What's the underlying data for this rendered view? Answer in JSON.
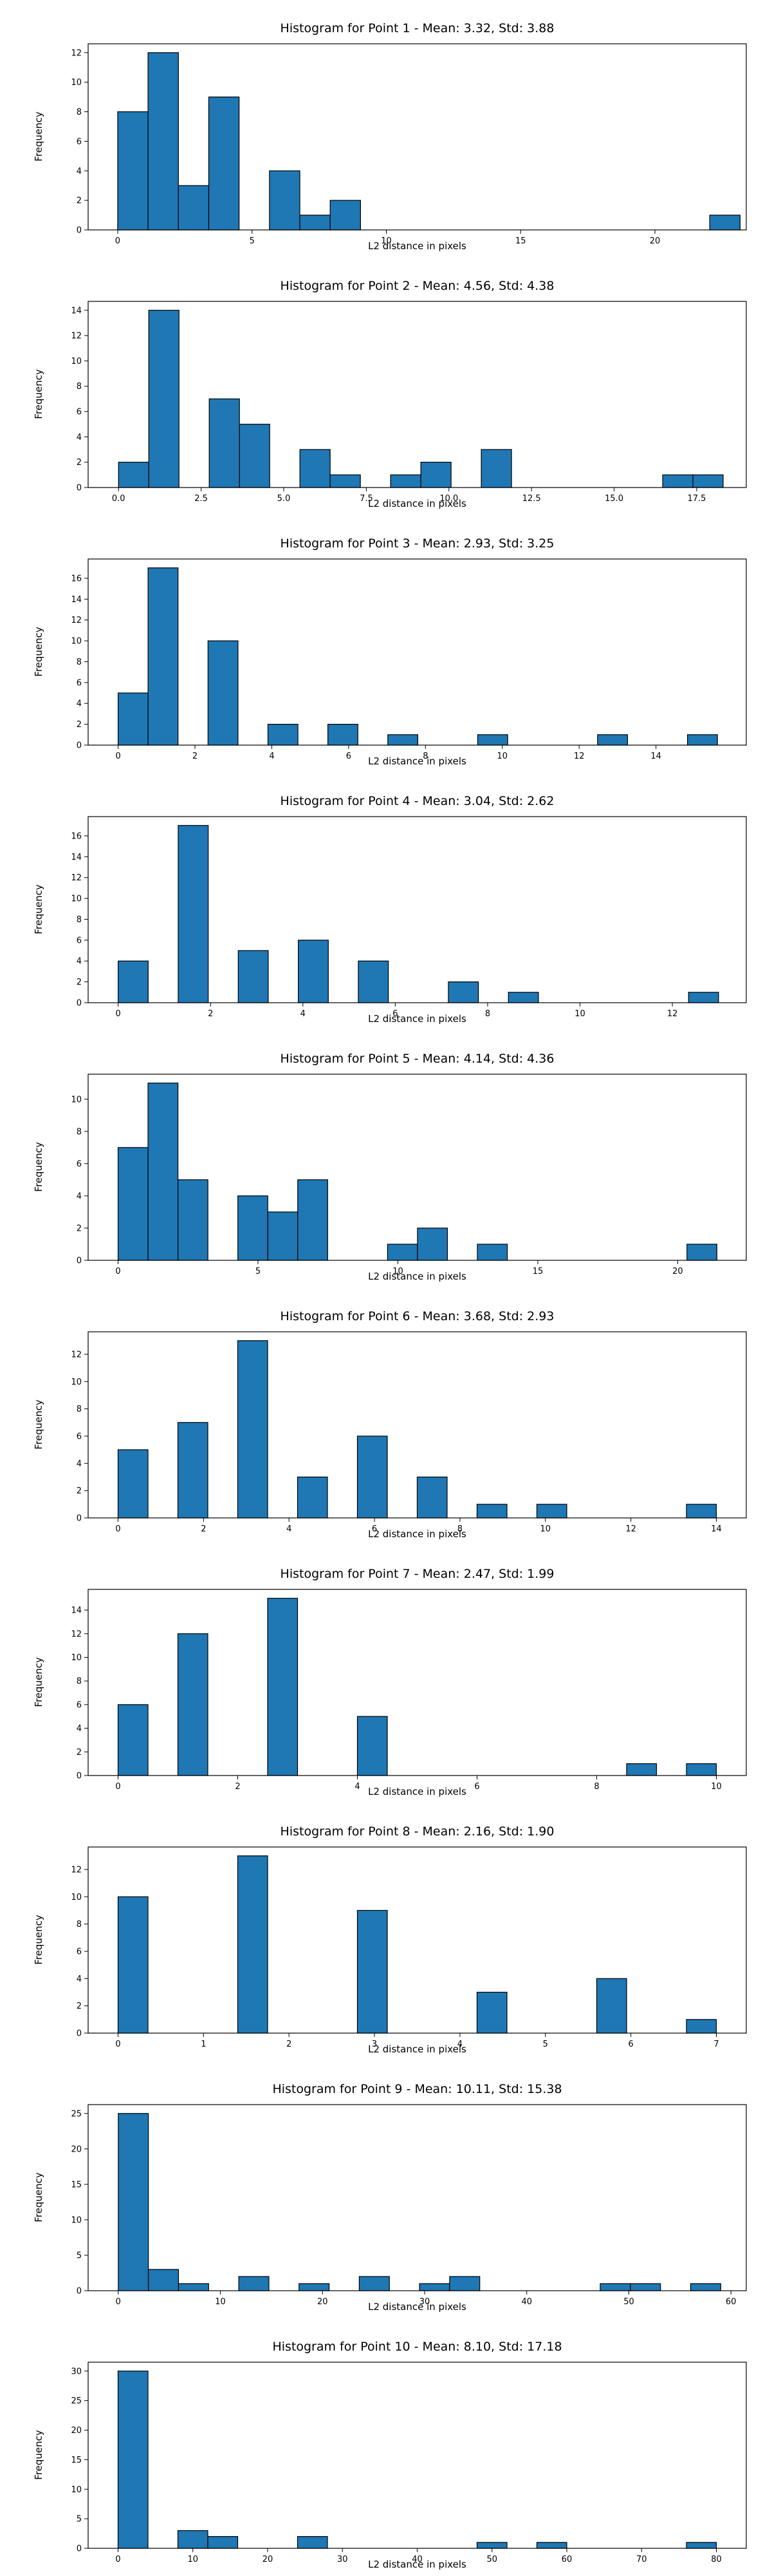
{
  "colors": {
    "bar_fill": "#1f77b4",
    "bar_edge": "#000000",
    "axis": "#000000"
  },
  "chart_data": [
    {
      "type": "bar",
      "title": "Histogram for Point 1 - Mean: 3.32, Std: 3.88",
      "xlabel": "L2 distance in pixels",
      "ylabel": "Frequency",
      "xlim": [
        -1.1,
        23.4
      ],
      "ylim": [
        0,
        12.6
      ],
      "grid": false,
      "bin_width": 1.13,
      "bins": [
        {
          "left": 0.0,
          "count": 8
        },
        {
          "left": 1.13,
          "count": 12
        },
        {
          "left": 2.26,
          "count": 3
        },
        {
          "left": 3.39,
          "count": 9
        },
        {
          "left": 5.65,
          "count": 4
        },
        {
          "left": 6.78,
          "count": 1
        },
        {
          "left": 7.91,
          "count": 2
        },
        {
          "left": 22.04,
          "count": 1
        }
      ],
      "xticks": [
        0,
        5,
        10,
        15,
        20
      ],
      "xticklabels": [
        "0",
        "5",
        "10",
        "15",
        "20"
      ],
      "yticks": [
        0,
        2,
        4,
        6,
        8,
        10,
        12
      ],
      "yticklabels": [
        "0",
        "2",
        "4",
        "6",
        "8",
        "10",
        "12"
      ]
    },
    {
      "type": "bar",
      "title": "Histogram for Point 2 - Mean: 4.56, Std: 4.38",
      "xlabel": "L2 distance in pixels",
      "ylabel": "Frequency",
      "xlim": [
        -0.92,
        19.0
      ],
      "ylim": [
        0,
        14.7
      ],
      "grid": false,
      "bin_width": 0.915,
      "bins": [
        {
          "left": 0.0,
          "count": 2
        },
        {
          "left": 0.915,
          "count": 14
        },
        {
          "left": 2.745,
          "count": 7
        },
        {
          "left": 3.66,
          "count": 5
        },
        {
          "left": 5.49,
          "count": 3
        },
        {
          "left": 6.405,
          "count": 1
        },
        {
          "left": 8.235,
          "count": 1
        },
        {
          "left": 9.15,
          "count": 2
        },
        {
          "left": 10.98,
          "count": 3
        },
        {
          "left": 16.47,
          "count": 1
        },
        {
          "left": 17.385,
          "count": 1
        }
      ],
      "xticks": [
        0,
        2.5,
        5,
        7.5,
        10,
        12.5,
        15,
        17.5
      ],
      "xticklabels": [
        "0.0",
        "2.5",
        "5.0",
        "7.5",
        "10.0",
        "12.5",
        "15.0",
        "17.5"
      ],
      "yticks": [
        0,
        2,
        4,
        6,
        8,
        10,
        12,
        14
      ],
      "yticklabels": [
        "0",
        "2",
        "4",
        "6",
        "8",
        "10",
        "12",
        "14"
      ]
    },
    {
      "type": "bar",
      "title": "Histogram for Point 3 - Mean: 2.93, Std: 3.25",
      "xlabel": "L2 distance in pixels",
      "ylabel": "Frequency",
      "xlim": [
        -0.78,
        16.35
      ],
      "ylim": [
        0,
        17.85
      ],
      "grid": false,
      "bin_width": 0.78,
      "bins": [
        {
          "left": 0.0,
          "count": 5
        },
        {
          "left": 0.78,
          "count": 17
        },
        {
          "left": 2.34,
          "count": 10
        },
        {
          "left": 3.9,
          "count": 2
        },
        {
          "left": 5.46,
          "count": 2
        },
        {
          "left": 7.02,
          "count": 1
        },
        {
          "left": 9.36,
          "count": 1
        },
        {
          "left": 12.48,
          "count": 1
        },
        {
          "left": 14.82,
          "count": 1
        }
      ],
      "xticks": [
        0,
        2,
        4,
        6,
        8,
        10,
        12,
        14
      ],
      "xticklabels": [
        "0",
        "2",
        "4",
        "6",
        "8",
        "10",
        "12",
        "14"
      ],
      "yticks": [
        0,
        2,
        4,
        6,
        8,
        10,
        12,
        14,
        16
      ],
      "yticklabels": [
        "0",
        "2",
        "4",
        "6",
        "8",
        "10",
        "12",
        "14",
        "16"
      ]
    },
    {
      "type": "bar",
      "title": "Histogram for Point 4 - Mean: 3.04, Std: 2.62",
      "xlabel": "L2 distance in pixels",
      "ylabel": "Frequency",
      "xlim": [
        -0.65,
        13.6
      ],
      "ylim": [
        0,
        17.85
      ],
      "grid": false,
      "bin_width": 0.65,
      "bins": [
        {
          "left": 0.0,
          "count": 4
        },
        {
          "left": 1.3,
          "count": 17
        },
        {
          "left": 2.6,
          "count": 5
        },
        {
          "left": 3.9,
          "count": 6
        },
        {
          "left": 5.2,
          "count": 4
        },
        {
          "left": 7.15,
          "count": 2
        },
        {
          "left": 8.45,
          "count": 1
        },
        {
          "left": 12.35,
          "count": 1
        }
      ],
      "xticks": [
        0,
        2,
        4,
        6,
        8,
        10,
        12
      ],
      "xticklabels": [
        "0",
        "2",
        "4",
        "6",
        "8",
        "10",
        "12"
      ],
      "yticks": [
        0,
        2,
        4,
        6,
        8,
        10,
        12,
        14,
        16
      ],
      "yticklabels": [
        "0",
        "2",
        "4",
        "6",
        "8",
        "10",
        "12",
        "14",
        "16"
      ]
    },
    {
      "type": "bar",
      "title": "Histogram for Point 5 - Mean: 4.14, Std: 4.36",
      "xlabel": "L2 distance in pixels",
      "ylabel": "Frequency",
      "xlim": [
        -1.07,
        22.45
      ],
      "ylim": [
        0,
        11.55
      ],
      "grid": false,
      "bin_width": 1.07,
      "bins": [
        {
          "left": 0.0,
          "count": 7
        },
        {
          "left": 1.07,
          "count": 11
        },
        {
          "left": 2.14,
          "count": 5
        },
        {
          "left": 4.28,
          "count": 4
        },
        {
          "left": 5.35,
          "count": 3
        },
        {
          "left": 6.42,
          "count": 5
        },
        {
          "left": 9.63,
          "count": 1
        },
        {
          "left": 10.7,
          "count": 2
        },
        {
          "left": 12.84,
          "count": 1
        },
        {
          "left": 20.33,
          "count": 1
        }
      ],
      "xticks": [
        0,
        5,
        10,
        15,
        20
      ],
      "xticklabels": [
        "0",
        "5",
        "10",
        "15",
        "20"
      ],
      "yticks": [
        0,
        2,
        4,
        6,
        8,
        10
      ],
      "yticklabels": [
        "0",
        "2",
        "4",
        "6",
        "8",
        "10"
      ]
    },
    {
      "type": "bar",
      "title": "Histogram for Point 6 - Mean: 3.68, Std: 2.93",
      "xlabel": "L2 distance in pixels",
      "ylabel": "Frequency",
      "xlim": [
        -0.7,
        14.7
      ],
      "ylim": [
        0,
        13.65
      ],
      "grid": false,
      "bin_width": 0.7,
      "bins": [
        {
          "left": 0.0,
          "count": 5
        },
        {
          "left": 1.4,
          "count": 7
        },
        {
          "left": 2.8,
          "count": 13
        },
        {
          "left": 4.2,
          "count": 3
        },
        {
          "left": 5.6,
          "count": 6
        },
        {
          "left": 7.0,
          "count": 3
        },
        {
          "left": 8.4,
          "count": 1
        },
        {
          "left": 9.8,
          "count": 1
        },
        {
          "left": 13.3,
          "count": 1
        }
      ],
      "xticks": [
        0,
        2,
        4,
        6,
        8,
        10,
        12,
        14
      ],
      "xticklabels": [
        "0",
        "2",
        "4",
        "6",
        "8",
        "10",
        "12",
        "14"
      ],
      "yticks": [
        0,
        2,
        4,
        6,
        8,
        10,
        12
      ],
      "yticklabels": [
        "0",
        "2",
        "4",
        "6",
        "8",
        "10",
        "12"
      ]
    },
    {
      "type": "bar",
      "title": "Histogram for Point 7 - Mean: 2.47, Std: 1.99",
      "xlabel": "L2 distance in pixels",
      "ylabel": "Frequency",
      "xlim": [
        -0.5,
        10.5
      ],
      "ylim": [
        0,
        15.75
      ],
      "grid": false,
      "bin_width": 0.5,
      "bins": [
        {
          "left": 0.0,
          "count": 6
        },
        {
          "left": 1.0,
          "count": 12
        },
        {
          "left": 2.5,
          "count": 15
        },
        {
          "left": 4.0,
          "count": 5
        },
        {
          "left": 8.5,
          "count": 1
        },
        {
          "left": 9.5,
          "count": 1
        }
      ],
      "xticks": [
        0,
        2,
        4,
        6,
        8,
        10
      ],
      "xticklabels": [
        "0",
        "2",
        "4",
        "6",
        "8",
        "10"
      ],
      "yticks": [
        0,
        2,
        4,
        6,
        8,
        10,
        12,
        14
      ],
      "yticklabels": [
        "0",
        "2",
        "4",
        "6",
        "8",
        "10",
        "12",
        "14"
      ]
    },
    {
      "type": "bar",
      "title": "Histogram for Point 8 - Mean: 2.16, Std: 1.90",
      "xlabel": "L2 distance in pixels",
      "ylabel": "Frequency",
      "xlim": [
        -0.35,
        7.35
      ],
      "ylim": [
        0,
        13.65
      ],
      "grid": false,
      "bin_width": 0.35,
      "bins": [
        {
          "left": 0.0,
          "count": 10
        },
        {
          "left": 1.4,
          "count": 13
        },
        {
          "left": 2.8,
          "count": 9
        },
        {
          "left": 4.2,
          "count": 3
        },
        {
          "left": 5.6,
          "count": 4
        },
        {
          "left": 6.65,
          "count": 1
        }
      ],
      "xticks": [
        0,
        1,
        2,
        3,
        4,
        5,
        6,
        7
      ],
      "xticklabels": [
        "0",
        "1",
        "2",
        "3",
        "4",
        "5",
        "6",
        "7"
      ],
      "yticks": [
        0,
        2,
        4,
        6,
        8,
        10,
        12
      ],
      "yticklabels": [
        "0",
        "2",
        "4",
        "6",
        "8",
        "10",
        "12"
      ]
    },
    {
      "type": "bar",
      "title": "Histogram for Point 9 - Mean: 10.11, Std: 15.38",
      "xlabel": "L2 distance in pixels",
      "ylabel": "Frequency",
      "xlim": [
        -2.95,
        61.5
      ],
      "ylim": [
        0,
        26.25
      ],
      "grid": false,
      "bin_width": 2.95,
      "bins": [
        {
          "left": 0.0,
          "count": 25
        },
        {
          "left": 2.95,
          "count": 3
        },
        {
          "left": 5.9,
          "count": 1
        },
        {
          "left": 11.8,
          "count": 2
        },
        {
          "left": 17.7,
          "count": 1
        },
        {
          "left": 23.6,
          "count": 2
        },
        {
          "left": 29.5,
          "count": 1
        },
        {
          "left": 32.45,
          "count": 2
        },
        {
          "left": 47.2,
          "count": 1
        },
        {
          "left": 50.15,
          "count": 1
        },
        {
          "left": 56.05,
          "count": 1
        }
      ],
      "xticks": [
        0,
        10,
        20,
        30,
        40,
        50,
        60
      ],
      "xticklabels": [
        "0",
        "10",
        "20",
        "30",
        "40",
        "50",
        "60"
      ],
      "yticks": [
        0,
        5,
        10,
        15,
        20,
        25
      ],
      "yticklabels": [
        "0",
        "5",
        "10",
        "15",
        "20",
        "25"
      ]
    },
    {
      "type": "bar",
      "title": "Histogram for Point 10 - Mean: 8.10, Std: 17.18",
      "xlabel": "L2 distance in pixels",
      "ylabel": "Frequency",
      "xlim": [
        -4.0,
        84.0
      ],
      "ylim": [
        0,
        31.5
      ],
      "grid": false,
      "bin_width": 4.0,
      "bins": [
        {
          "left": 0.0,
          "count": 30
        },
        {
          "left": 8.0,
          "count": 3
        },
        {
          "left": 12.0,
          "count": 2
        },
        {
          "left": 24.0,
          "count": 2
        },
        {
          "left": 48.0,
          "count": 1
        },
        {
          "left": 56.0,
          "count": 1
        },
        {
          "left": 76.0,
          "count": 1
        }
      ],
      "xticks": [
        0,
        10,
        20,
        30,
        40,
        50,
        60,
        70,
        80
      ],
      "xticklabels": [
        "0",
        "10",
        "20",
        "30",
        "40",
        "50",
        "60",
        "70",
        "80"
      ],
      "yticks": [
        0,
        5,
        10,
        15,
        20,
        25,
        30
      ],
      "yticklabels": [
        "0",
        "5",
        "10",
        "15",
        "20",
        "25",
        "30"
      ]
    }
  ]
}
